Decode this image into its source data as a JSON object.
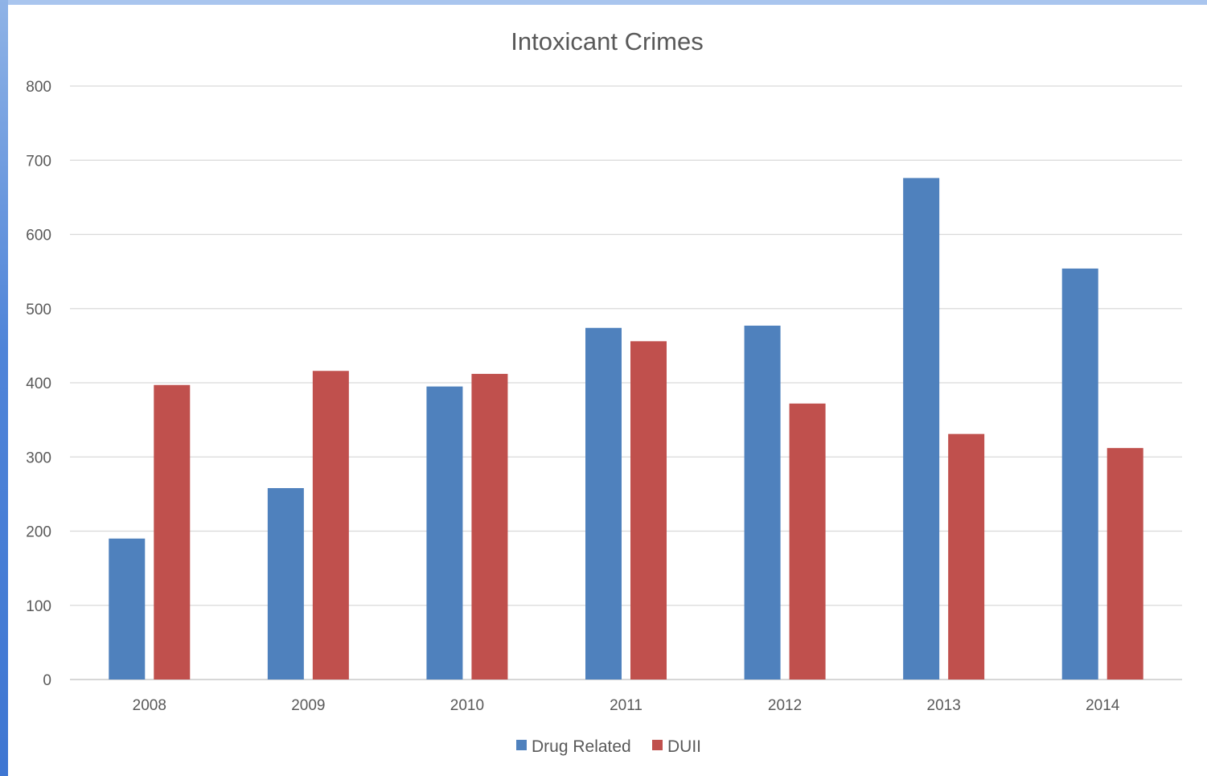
{
  "chart_data": {
    "type": "bar",
    "title": "Intoxicant Crimes",
    "xlabel": "",
    "ylabel": "",
    "categories": [
      "2008",
      "2009",
      "2010",
      "2011",
      "2012",
      "2013",
      "2014"
    ],
    "series": [
      {
        "name": "Drug Related",
        "color": "#4f81bd",
        "values": [
          190,
          258,
          395,
          474,
          477,
          676,
          554
        ]
      },
      {
        "name": "DUII",
        "color": "#c0504d",
        "values": [
          397,
          416,
          412,
          456,
          372,
          331,
          312
        ]
      }
    ],
    "ylim": [
      0,
      800
    ],
    "yticks": [
      0,
      100,
      200,
      300,
      400,
      500,
      600,
      700,
      800
    ],
    "grid": true,
    "legend_position": "bottom"
  }
}
